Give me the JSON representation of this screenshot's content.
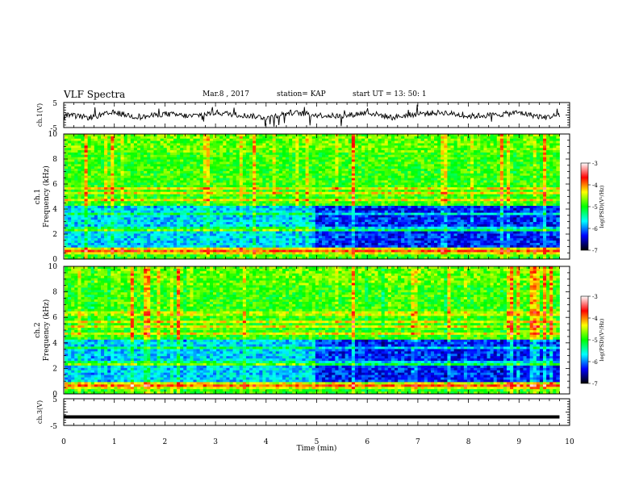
{
  "header": {
    "title": "VLF Spectra",
    "date": "Mar.8 , 2017",
    "station": "station= KAP",
    "start": "start UT = 13: 50: 1"
  },
  "colorbar": {
    "label": "log(PSD)(V²/Hz)",
    "ticks": [
      "-3",
      "-4",
      "-5",
      "-6",
      "-7"
    ],
    "colors": [
      "#ffffff",
      "#ff0000",
      "#ffff00",
      "#00ff00",
      "#00ffff",
      "#0000ff",
      "#000000"
    ]
  },
  "chart_data": [
    {
      "type": "line",
      "ylabel": "ch.1(V)",
      "ylim": [
        -5,
        5
      ],
      "yticks": [
        "5",
        "-5"
      ],
      "description_series": "waveform",
      "x": [
        0,
        0.5,
        1,
        1.5,
        2,
        2.5,
        3,
        3.5,
        4,
        4.5,
        5,
        5.5,
        6,
        6.5,
        7,
        7.5,
        8,
        8.5,
        9,
        9.5,
        9.8
      ],
      "y": [
        0,
        -1,
        1,
        -1,
        0.5,
        -0.5,
        1,
        0,
        -1,
        1,
        0,
        -0.5,
        1,
        -1,
        0.5,
        1,
        -0.5,
        0,
        1,
        -1,
        0
      ]
    },
    {
      "type": "heatmap",
      "ylabel_top": "ch.1",
      "ylabel": "Frequency (kHz)",
      "xlim": [
        0,
        10
      ],
      "ylim": [
        0,
        10
      ],
      "yticks": [
        "0",
        "2",
        "4",
        "6",
        "8",
        "10"
      ],
      "zlim": [
        -7,
        -3
      ]
    },
    {
      "type": "heatmap",
      "ylabel_top": "ch.2",
      "ylabel": "Frequency (kHz)",
      "xlim": [
        0,
        10
      ],
      "ylim": [
        0,
        10
      ],
      "yticks": [
        "0",
        "2",
        "4",
        "6",
        "8",
        "10"
      ],
      "zlim": [
        -7,
        -3
      ]
    },
    {
      "type": "line",
      "ylabel": "ch.3(V)",
      "ylim": [
        -5,
        5
      ],
      "yticks": [
        "5",
        "-5"
      ],
      "x": [
        0,
        9.8
      ],
      "y": [
        -1.8,
        -1.8
      ],
      "xlabel": "Time (min)",
      "xticks": [
        "0",
        "1",
        "2",
        "3",
        "4",
        "5",
        "6",
        "7",
        "8",
        "9",
        "10"
      ]
    }
  ]
}
